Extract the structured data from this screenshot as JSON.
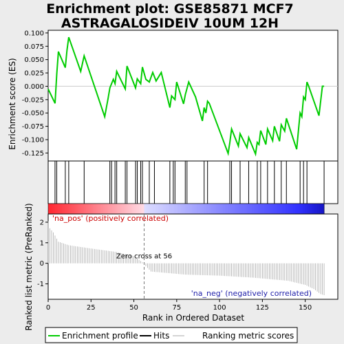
{
  "title_line1": "Enrichment plot: GSE85871 MCF7",
  "title_line2": "ASTRAGALOSIDEIV 10UM 12H",
  "chart_data": {
    "type": "line",
    "x_label": "Rank in Ordered Dataset",
    "es_panel": {
      "ylabel": "Enrichment score (ES)",
      "ylim": [
        -0.14,
        0.105
      ],
      "yticks": [
        -0.125,
        -0.1,
        -0.075,
        -0.05,
        -0.025,
        0.0,
        0.025,
        0.05,
        0.075,
        0.1
      ],
      "ytick_labels": [
        "-0.125",
        "-0.100",
        "-0.075",
        "-0.050",
        "-0.025",
        "0.000",
        "0.025",
        "0.050",
        "0.075",
        "0.100"
      ],
      "series_name": "Enrichment profile",
      "x": [
        0,
        4,
        5,
        6,
        10,
        11,
        12,
        19,
        21,
        33,
        35,
        36,
        38,
        39,
        40,
        45,
        46,
        51,
        52,
        54,
        55,
        57,
        59,
        61,
        63,
        66,
        71,
        72,
        74,
        75,
        79,
        80,
        82,
        86,
        90,
        91,
        92,
        93,
        94,
        105,
        106,
        107,
        111,
        112,
        116,
        117,
        121,
        122,
        123,
        124,
        127,
        128,
        131,
        132,
        135,
        136,
        138,
        139,
        145,
        147,
        148,
        149,
        150,
        151,
        152,
        158,
        160,
        161
      ],
      "y": [
        -0.005,
        -0.032,
        0.023,
        0.065,
        0.035,
        0.068,
        0.092,
        0.028,
        0.057,
        -0.057,
        -0.022,
        -0.003,
        0.013,
        0.005,
        0.028,
        -0.005,
        0.038,
        -0.003,
        0.014,
        0.005,
        0.036,
        0.013,
        0.008,
        0.026,
        0.01,
        0.026,
        -0.04,
        -0.018,
        -0.025,
        0.008,
        -0.033,
        -0.016,
        0.008,
        -0.02,
        -0.065,
        -0.04,
        -0.05,
        -0.028,
        -0.032,
        -0.126,
        -0.105,
        -0.08,
        -0.112,
        -0.089,
        -0.115,
        -0.096,
        -0.127,
        -0.105,
        -0.109,
        -0.083,
        -0.109,
        -0.08,
        -0.102,
        -0.075,
        -0.103,
        -0.072,
        -0.084,
        -0.06,
        -0.118,
        -0.05,
        -0.057,
        -0.02,
        -0.025,
        0.008,
        0.0,
        -0.055,
        0.0,
        0.0
      ]
    },
    "hits": {
      "name": "Hits",
      "positions": [
        4,
        5,
        10,
        12,
        21,
        36,
        37,
        39,
        40,
        45,
        46,
        51,
        52,
        54,
        55,
        59,
        62,
        71,
        73,
        74,
        80,
        81,
        91,
        93,
        106,
        107,
        112,
        117,
        122,
        124,
        128,
        132,
        136,
        139,
        147,
        149,
        151,
        161
      ]
    },
    "ranking_panel": {
      "ylabel": "Ranked list metric (PreRanked)",
      "ylim": [
        -1.75,
        2.4
      ],
      "yticks": [
        2,
        1,
        0,
        -1
      ],
      "ytick_labels": [
        "2",
        "1",
        "0",
        "-1"
      ],
      "series_name": "Ranking metric scores",
      "zero_cross": 56,
      "zero_cross_label": "Zero cross at 56",
      "pos_label": "'na_pos' (positively correlated)",
      "neg_label": "'na_neg' (negatively correlated)",
      "metric_start": 2.05,
      "metric_breaks": [
        {
          "rank": 0,
          "value": 2.05
        },
        {
          "rank": 1,
          "value": 1.7
        },
        {
          "rank": 3,
          "value": 1.5
        },
        {
          "rank": 6,
          "value": 1.05
        },
        {
          "rank": 12,
          "value": 0.88
        },
        {
          "rank": 25,
          "value": 0.72
        },
        {
          "rank": 40,
          "value": 0.55
        },
        {
          "rank": 50,
          "value": 0.35
        },
        {
          "rank": 55,
          "value": 0.05
        },
        {
          "rank": 56,
          "value": -0.05
        },
        {
          "rank": 60,
          "value": -0.4
        },
        {
          "rank": 80,
          "value": -0.55
        },
        {
          "rank": 100,
          "value": -0.6
        },
        {
          "rank": 120,
          "value": -0.7
        },
        {
          "rank": 140,
          "value": -0.85
        },
        {
          "rank": 150,
          "value": -1.05
        },
        {
          "rank": 155,
          "value": -1.25
        },
        {
          "rank": 159,
          "value": -1.5
        },
        {
          "rank": 161,
          "value": -1.55
        }
      ]
    },
    "xlim": [
      0,
      169
    ],
    "xticks": [
      0,
      25,
      50,
      75,
      100,
      125,
      150
    ],
    "xtick_labels": [
      "0",
      "25",
      "50",
      "75",
      "100",
      "125",
      "150"
    ],
    "legend": {
      "placement": "bottom",
      "items": [
        {
          "label": "Enrichment profile",
          "color": "#00cc00"
        },
        {
          "label": "Hits",
          "color": "#000000"
        },
        {
          "label": "Ranking metric scores",
          "color": "#aaaaaa"
        }
      ]
    }
  }
}
